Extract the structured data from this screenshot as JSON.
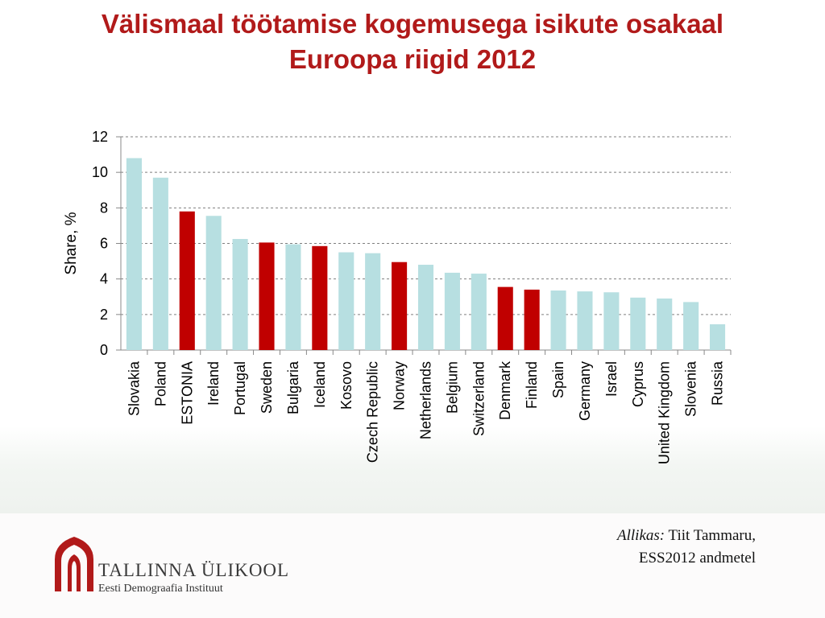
{
  "slide": {
    "title_line1": "Välismaal töötamise kogemusega isikute osakaal",
    "title_line2": "Euroopa riigid 2012"
  },
  "chart_data": {
    "type": "bar",
    "title": "",
    "xlabel": "",
    "ylabel": "Share, %",
    "ylim": [
      0,
      12
    ],
    "yticks": [
      0,
      2,
      4,
      6,
      8,
      10,
      12
    ],
    "grid": true,
    "categories": [
      "Slovakia",
      "Poland",
      "ESTONIA",
      "Ireland",
      "Portugal",
      "Sweden",
      "Bulgaria",
      "Iceland",
      "Kosovo",
      "Czech Republic",
      "Norway",
      "Netherlands",
      "Belgium",
      "Switzerland",
      "Denmark",
      "Finland",
      "Spain",
      "Germany",
      "Israel",
      "Cyprus",
      "United Kingdom",
      "Slovenia",
      "Russia"
    ],
    "values": [
      10.8,
      9.7,
      7.8,
      7.55,
      6.25,
      6.05,
      5.95,
      5.85,
      5.5,
      5.45,
      4.95,
      4.8,
      4.35,
      4.3,
      3.55,
      3.4,
      3.35,
      3.3,
      3.25,
      2.95,
      2.9,
      2.7,
      1.45
    ],
    "highlighted": [
      "ESTONIA",
      "Sweden",
      "Iceland",
      "Norway",
      "Denmark",
      "Finland"
    ],
    "colors": {
      "default_bar": "#b7dfe1",
      "highlight_bar": "#c00000",
      "grid": "#7f7f7f",
      "axis": "#888888"
    }
  },
  "source": {
    "label": "Allikas:",
    "line1": "Tiit Tammaru,",
    "line2": "ESS2012 andmetel"
  },
  "logo": {
    "icon": "tallinn-university-gate-icon",
    "name": "TALLINNA ÜLIKOOL",
    "institute": "Eesti Demograafia Instituut",
    "color": "#b11a1a"
  }
}
